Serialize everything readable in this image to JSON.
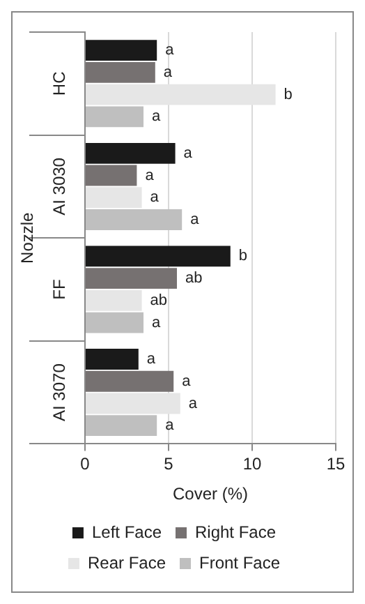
{
  "chart_data": {
    "type": "bar",
    "orientation": "horizontal",
    "xlabel": "Cover (%)",
    "ylabel": "Nozzle",
    "categories": [
      "HC",
      "AI 3030",
      "FF",
      "AI 3070"
    ],
    "series": [
      {
        "name": "Left Face",
        "color": "#1a1a1a",
        "values": [
          4.3,
          5.4,
          8.7,
          3.2
        ],
        "value_labels": [
          "a",
          "a",
          "b",
          "a"
        ]
      },
      {
        "name": "Right Face",
        "color": "#767171",
        "values": [
          4.2,
          3.1,
          5.5,
          5.3
        ],
        "value_labels": [
          "a",
          "a",
          "ab",
          "a"
        ]
      },
      {
        "name": "Rear Face",
        "color": "#e6e6e6",
        "values": [
          11.4,
          3.4,
          3.4,
          5.7
        ],
        "value_labels": [
          "b",
          "a",
          "ab",
          "a"
        ]
      },
      {
        "name": "Front Face",
        "color": "#bfbfbf",
        "values": [
          3.5,
          5.8,
          3.5,
          4.3
        ],
        "value_labels": [
          "a",
          "a",
          "a",
          "a"
        ]
      }
    ],
    "xlim": [
      0,
      15
    ],
    "xticks": [
      0,
      5,
      10,
      15
    ],
    "grid": "x",
    "legend": "bottom"
  }
}
